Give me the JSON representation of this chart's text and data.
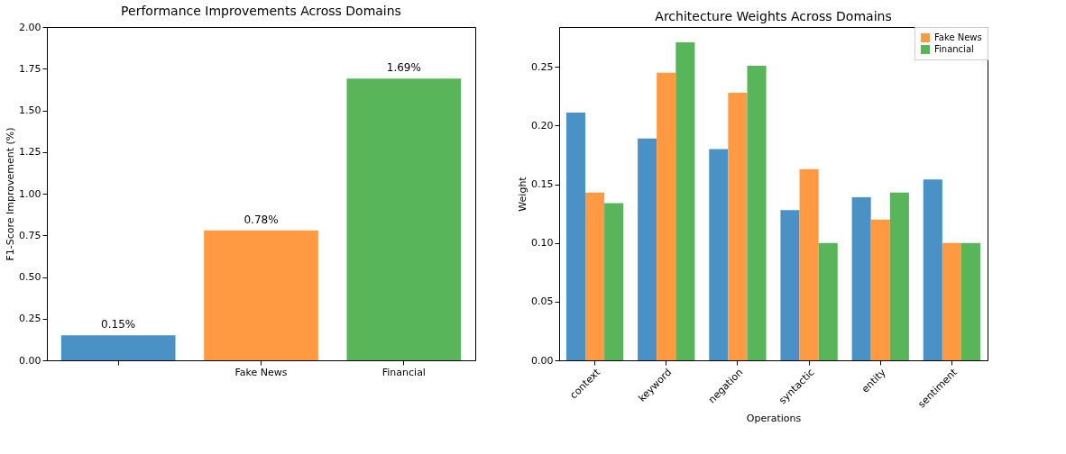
{
  "chart_data": [
    {
      "type": "bar",
      "title": "Performance Improvements Across Domains",
      "ylabel": "F1-Score Improvement (%)",
      "categories": [
        null,
        "Fake News",
        "Financial"
      ],
      "values": [
        0.15,
        0.78,
        1.69
      ],
      "value_labels": [
        "0.15%",
        "0.78%",
        "1.69%"
      ],
      "colors": [
        "#4a92c6",
        "#ff9a42",
        "#58b55a"
      ],
      "ylim": [
        0,
        2
      ],
      "yticks": [
        {
          "value": 0,
          "label": "0.00"
        },
        0.25,
        {
          "value": 0.5,
          "label": "0.50"
        },
        0.75,
        {
          "value": 1,
          "label": "1.00"
        },
        1.25,
        {
          "value": 1.5,
          "label": "1.50"
        },
        1.75,
        {
          "value": 2,
          "label": "2.00"
        }
      ],
      "grid": false
    },
    {
      "type": "bar",
      "title": "Architecture Weights Across Domains",
      "xlabel": "Operations",
      "ylabel": "Weight",
      "categories": [
        "context",
        "keyword",
        "negation",
        "syntactic",
        "entity",
        "sentiment"
      ],
      "series": [
        {
          "color": "#4a92c6",
          "values": [
            0.211,
            0.189,
            0.18,
            0.128,
            0.139,
            0.154
          ]
        },
        {
          "name": "Fake News",
          "color": "#ff9a42",
          "values": [
            0.143,
            0.245,
            0.228,
            0.163,
            0.12,
            0.1
          ]
        },
        {
          "name": "Financial",
          "color": "#58b55a",
          "values": [
            0.134,
            0.271,
            0.251,
            0.1,
            0.143,
            0.1
          ]
        }
      ],
      "ylim": [
        0,
        0.284
      ],
      "yticks": [
        {
          "value": 0,
          "label": "0.00"
        },
        0.05,
        {
          "value": 0.1,
          "label": "0.10"
        },
        0.15,
        {
          "value": 0.2,
          "label": "0.20"
        },
        0.25
      ],
      "grid": false,
      "legend": "top right"
    }
  ]
}
